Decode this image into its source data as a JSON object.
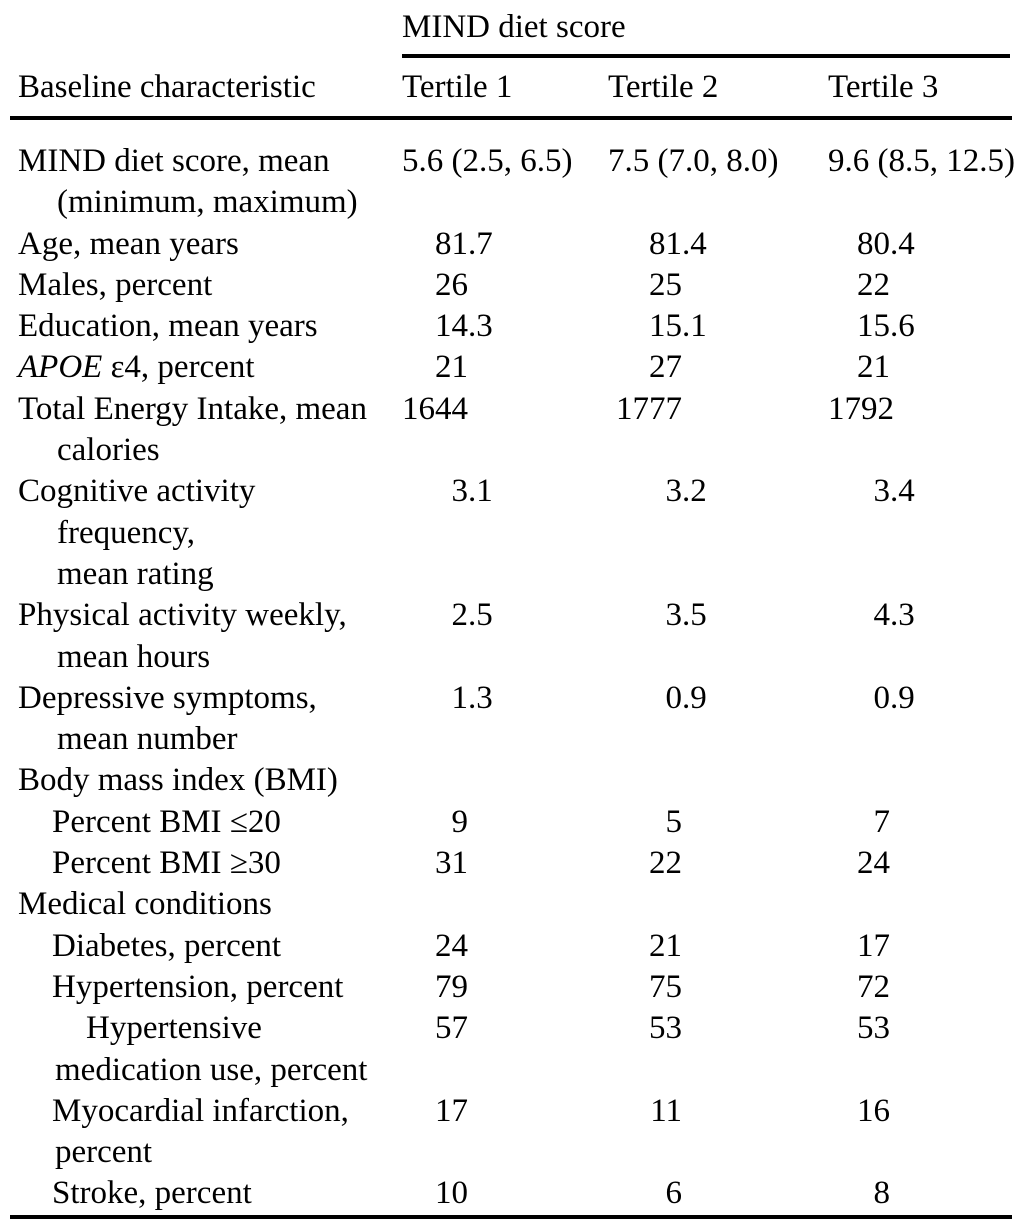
{
  "page": {
    "background": "#ffffff",
    "text_color": "#000000",
    "rule_color": "#000000"
  },
  "table": {
    "spanner_label": "MIND diet score",
    "stub_header": "Baseline characteristic",
    "column_headers": [
      "Tertile 1",
      "Tertile 2",
      "Tertile 3"
    ],
    "rows": [
      {
        "lines": [
          {
            "text": "MIND diet score, mean",
            "indent": "L0"
          },
          {
            "text": "(minimum, maximum)",
            "indent": "L0cont"
          }
        ],
        "raw": true,
        "values": [
          "5.6 (2.5, 6.5)",
          "7.5 (7.0, 8.0)",
          "9.6 (8.5, 12.5)"
        ]
      },
      {
        "lines": [
          {
            "text": "Age, mean years",
            "indent": "L0"
          }
        ],
        "values": [
          "81.7",
          "81.4",
          "80.4"
        ]
      },
      {
        "lines": [
          {
            "text": "Males, percent",
            "indent": "L0"
          }
        ],
        "values": [
          "26",
          "25",
          "22"
        ]
      },
      {
        "lines": [
          {
            "text": "Education, mean years",
            "indent": "L0"
          }
        ],
        "values": [
          "14.3",
          "15.1",
          "15.6"
        ]
      },
      {
        "lines": [
          {
            "italic_text": "APOE",
            "text": " ε4, percent",
            "indent": "L0"
          }
        ],
        "values": [
          "21",
          "27",
          "21"
        ]
      },
      {
        "lines": [
          {
            "text": "Total Energy Intake, mean",
            "indent": "L0"
          },
          {
            "text": "calories",
            "indent": "L0cont"
          }
        ],
        "values": [
          "1644",
          "1777",
          "1792"
        ]
      },
      {
        "lines": [
          {
            "text": "Cognitive activity",
            "indent": "L0"
          },
          {
            "text": "frequency,",
            "indent": "L0cont"
          },
          {
            "text": "mean rating",
            "indent": "L0cont"
          }
        ],
        "values": [
          "3.1",
          "3.2",
          "3.4"
        ]
      },
      {
        "lines": [
          {
            "text": "Physical activity weekly,",
            "indent": "L0"
          },
          {
            "text": "mean hours",
            "indent": "L0cont"
          }
        ],
        "values": [
          "2.5",
          "3.5",
          "4.3"
        ]
      },
      {
        "lines": [
          {
            "text": "Depressive symptoms,",
            "indent": "L0"
          },
          {
            "text": "mean number",
            "indent": "L0cont"
          }
        ],
        "values": [
          "1.3",
          "0.9",
          "0.9"
        ]
      },
      {
        "lines": [
          {
            "text": "Body mass index (BMI)",
            "indent": "L0"
          }
        ],
        "values": []
      },
      {
        "lines": [
          {
            "text": "Percent BMI ≤20",
            "indent": "L1"
          }
        ],
        "values": [
          "9",
          "5",
          "7"
        ]
      },
      {
        "lines": [
          {
            "text": "Percent BMI ≥30",
            "indent": "L1"
          }
        ],
        "values": [
          "31",
          "22",
          "24"
        ]
      },
      {
        "lines": [
          {
            "text": "Medical conditions",
            "indent": "L0"
          }
        ],
        "values": []
      },
      {
        "lines": [
          {
            "text": "Diabetes, percent",
            "indent": "L1"
          }
        ],
        "values": [
          "24",
          "21",
          "17"
        ]
      },
      {
        "lines": [
          {
            "text": "Hypertension, percent",
            "indent": "L1"
          }
        ],
        "values": [
          "79",
          "75",
          "72"
        ]
      },
      {
        "lines": [
          {
            "text": "Hypertensive",
            "indent": "L2"
          },
          {
            "text": "medication use, percent",
            "indent": "L1cont"
          }
        ],
        "values": [
          "57",
          "53",
          "53"
        ]
      },
      {
        "lines": [
          {
            "text": "Myocardial infarction,",
            "indent": "L1"
          },
          {
            "text": "percent",
            "indent": "L1cont"
          }
        ],
        "values": [
          "17",
          "11",
          "16"
        ]
      },
      {
        "lines": [
          {
            "text": "Stroke, percent",
            "indent": "L1"
          }
        ],
        "values": [
          "10",
          "6",
          "8"
        ]
      }
    ]
  }
}
